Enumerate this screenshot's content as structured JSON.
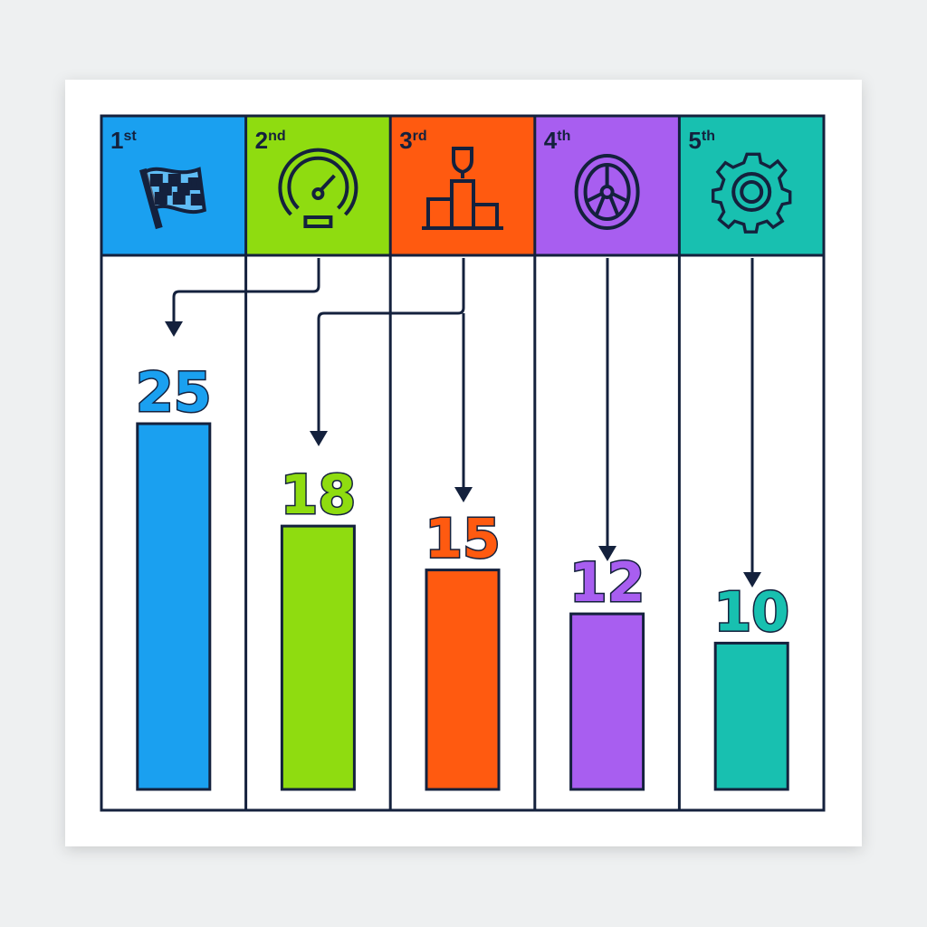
{
  "chart_data": {
    "type": "bar",
    "categories": [
      "1st",
      "2nd",
      "3rd",
      "4th",
      "5th"
    ],
    "values": [
      25,
      18,
      15,
      12,
      10
    ],
    "icons": [
      "checkered-flag-icon",
      "speedometer-icon",
      "trophy-podium-icon",
      "wheel-icon",
      "gear-icon"
    ],
    "colors": [
      "#1aa0f0",
      "#8fdc10",
      "#ff5a10",
      "#a85ef0",
      "#18c0b0"
    ],
    "ylim": [
      0,
      25
    ],
    "grid": false,
    "title": "",
    "xlabel": "",
    "ylabel": ""
  }
}
